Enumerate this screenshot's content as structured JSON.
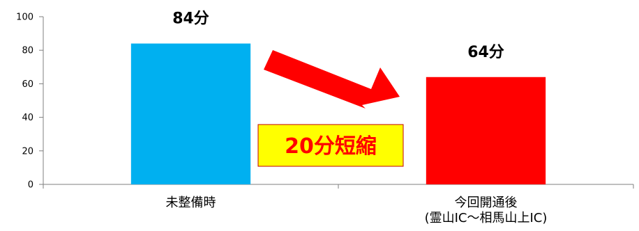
{
  "chart_data": {
    "type": "bar",
    "categories": [
      "未整備時",
      "今回開通後\n(霊山IC～相馬山上IC)"
    ],
    "values": [
      84,
      64
    ],
    "data_labels": [
      "84分",
      "64分"
    ],
    "ylim": [
      0,
      100
    ],
    "yticks": [
      0,
      20,
      40,
      60,
      80,
      100
    ],
    "colors": [
      "#00b0f0",
      "#ff0000"
    ],
    "annotation": "20分短縮",
    "annotation_box_color": "#ffff00",
    "annotation_text_color": "#ff0000",
    "arrow_color": "#ff0000",
    "grid": false,
    "legend": "none"
  }
}
